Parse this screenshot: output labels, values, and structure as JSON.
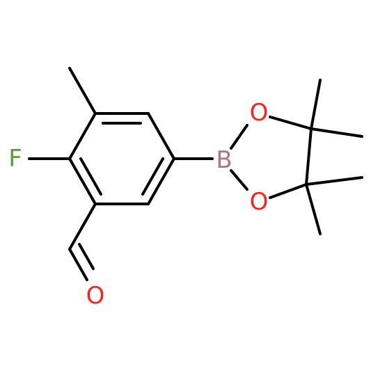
{
  "atoms": [
    {
      "label": "F"
    },
    {
      "label": "B"
    },
    {
      "label": "O"
    },
    {
      "label": "O"
    },
    {
      "label": "O"
    }
  ]
}
